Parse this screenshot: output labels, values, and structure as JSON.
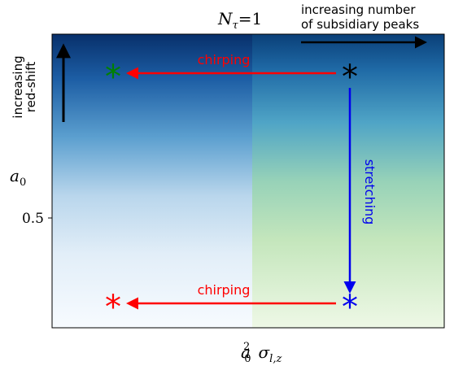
{
  "top_label": "N_τ=1",
  "top_label_var": "N",
  "top_label_sub": "τ",
  "top_label_eq": "=1",
  "top_note_line1": "increasing number",
  "top_note_line2": "of subsidiary peaks",
  "left_note_line1": "increasing",
  "left_note_line2": "red-shift",
  "y_axis_label": "a0",
  "y_axis_label_base": "a",
  "y_axis_label_sub": "0",
  "y_tick_label": "0.5",
  "x_axis_label": "a0^2 σ_l,z",
  "x_axis_label_base": "a",
  "x_axis_label_sub": "0",
  "x_axis_label_sup": "2",
  "x_axis_label_sigma": "σ",
  "x_axis_label_sigma_sub": "l,z",
  "chirp_label_top": "chirping",
  "chirp_label_bottom": "chirping",
  "stretch_label": "stretching",
  "markers": {
    "top_right": "*",
    "top_left": "*",
    "bottom_right": "*",
    "bottom_left": "*"
  },
  "colors": {
    "chirp_arrow": "#ff0000",
    "stretch_arrow": "#0000ee",
    "marker_black": "#000000",
    "marker_green": "#008000",
    "marker_blue": "#0000ee",
    "marker_red": "#ff0000",
    "blue_dark": "#08306b",
    "blue_light": "#f7fbff",
    "green_light": "#f0f9e8",
    "green_mid": "#9fd8a8"
  }
}
